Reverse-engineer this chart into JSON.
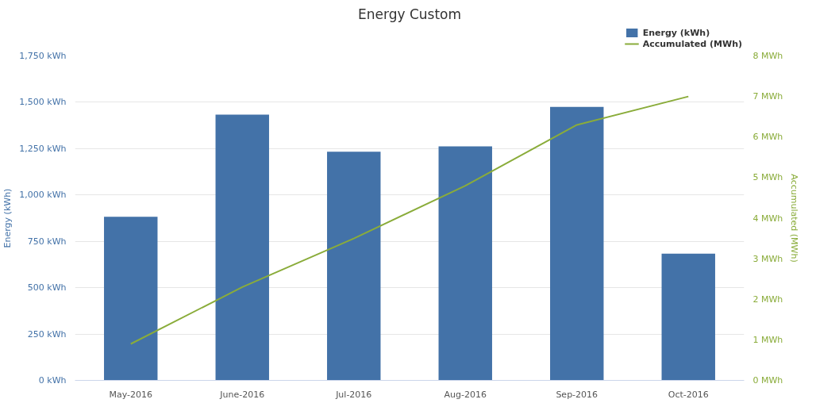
{
  "chart_data": {
    "type": "bar",
    "title": "Energy Custom",
    "categories": [
      "May-2016",
      "June-2016",
      "Jul-2016",
      "Aug-2016",
      "Sep-2016",
      "Oct-2016"
    ],
    "series": [
      {
        "name": "Energy (kWh)",
        "color": "#4372a8",
        "values": [
          883,
          1433,
          1233,
          1262,
          1475,
          683
        ]
      },
      {
        "name": "Accumulated (MWh)",
        "type": "line",
        "axis": "y2",
        "color": "#8aac3a",
        "values": [
          0.9,
          2.3,
          3.5,
          4.8,
          6.3,
          7.0
        ]
      }
    ],
    "ylabel": "Energy (kWh)",
    "y2label": "Accumulated (MWh)",
    "ylim": [
      0,
      1750
    ],
    "yticks": [
      {
        "value": 0,
        "label": "0 kWh"
      },
      {
        "value": 250,
        "label": "250 kWh"
      },
      {
        "value": 500,
        "label": "500 kWh"
      },
      {
        "value": 750,
        "label": "750 kWh"
      },
      {
        "value": 1000,
        "label": "1,000 kWh"
      },
      {
        "value": 1250,
        "label": "1,250 kWh"
      },
      {
        "value": 1500,
        "label": "1,500 kWh"
      },
      {
        "value": 1750,
        "label": "1,750 kWh"
      }
    ],
    "y2lim": [
      0,
      8
    ],
    "y2ticks": [
      {
        "value": 0,
        "label": "0 MWh"
      },
      {
        "value": 1,
        "label": "1 MWh"
      },
      {
        "value": 2,
        "label": "2 MWh"
      },
      {
        "value": 3,
        "label": "3 MWh"
      },
      {
        "value": 4,
        "label": "4 MWh"
      },
      {
        "value": 5,
        "label": "5 MWh"
      },
      {
        "value": 6,
        "label": "6 MWh"
      },
      {
        "value": 7,
        "label": "7 MWh"
      },
      {
        "value": 8,
        "label": "8 MWh"
      }
    ],
    "grid": "y",
    "legend": "top right",
    "marker": "none",
    "line_style": "solid"
  }
}
